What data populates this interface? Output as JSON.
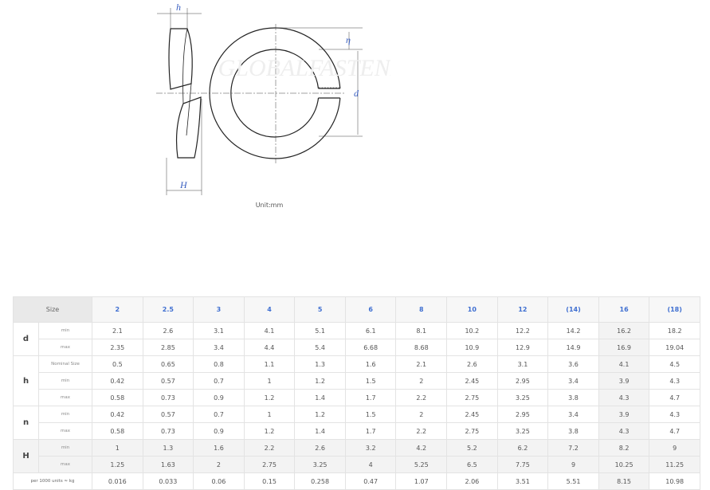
{
  "drawing": {
    "labels": {
      "h": "h",
      "n": "η",
      "d": "d",
      "H": "H"
    },
    "watermark": "GLOBALFASTENER",
    "unit": "Unit:mm"
  },
  "table": {
    "size_label": "Size",
    "sizes": [
      "2",
      "2.5",
      "3",
      "4",
      "5",
      "6",
      "8",
      "10",
      "12",
      "(14)",
      "16",
      "(18)"
    ],
    "groups": [
      {
        "name": "d",
        "rows": [
          {
            "label": "min",
            "values": [
              "2.1",
              "2.6",
              "3.1",
              "4.1",
              "5.1",
              "6.1",
              "8.1",
              "10.2",
              "12.2",
              "14.2",
              "16.2",
              "18.2"
            ]
          },
          {
            "label": "max",
            "values": [
              "2.35",
              "2.85",
              "3.4",
              "4.4",
              "5.4",
              "6.68",
              "8.68",
              "10.9",
              "12.9",
              "14.9",
              "16.9",
              "19.04"
            ]
          }
        ]
      },
      {
        "name": "h",
        "rows": [
          {
            "label": "Nominal Size",
            "values": [
              "0.5",
              "0.65",
              "0.8",
              "1.1",
              "1.3",
              "1.6",
              "2.1",
              "2.6",
              "3.1",
              "3.6",
              "4.1",
              "4.5"
            ]
          },
          {
            "label": "min",
            "values": [
              "0.42",
              "0.57",
              "0.7",
              "1",
              "1.2",
              "1.5",
              "2",
              "2.45",
              "2.95",
              "3.4",
              "3.9",
              "4.3"
            ]
          },
          {
            "label": "max",
            "values": [
              "0.58",
              "0.73",
              "0.9",
              "1.2",
              "1.4",
              "1.7",
              "2.2",
              "2.75",
              "3.25",
              "3.8",
              "4.3",
              "4.7"
            ]
          }
        ]
      },
      {
        "name": "n",
        "rows": [
          {
            "label": "min",
            "values": [
              "0.42",
              "0.57",
              "0.7",
              "1",
              "1.2",
              "1.5",
              "2",
              "2.45",
              "2.95",
              "3.4",
              "3.9",
              "4.3"
            ]
          },
          {
            "label": "max",
            "values": [
              "0.58",
              "0.73",
              "0.9",
              "1.2",
              "1.4",
              "1.7",
              "2.2",
              "2.75",
              "3.25",
              "3.8",
              "4.3",
              "4.7"
            ]
          }
        ]
      },
      {
        "name": "H",
        "shaded": true,
        "rows": [
          {
            "label": "min",
            "values": [
              "1",
              "1.3",
              "1.6",
              "2.2",
              "2.6",
              "3.2",
              "4.2",
              "5.2",
              "6.2",
              "7.2",
              "8.2",
              "9"
            ]
          },
          {
            "label": "max",
            "values": [
              "1.25",
              "1.63",
              "2",
              "2.75",
              "3.25",
              "4",
              "5.25",
              "6.5",
              "7.75",
              "9",
              "10.25",
              "11.25"
            ]
          }
        ]
      }
    ],
    "weight": {
      "label": "per 1000 units ≈ kg",
      "values": [
        "0.016",
        "0.033",
        "0.06",
        "0.15",
        "0.258",
        "0.47",
        "1.07",
        "2.06",
        "3.51",
        "5.51",
        "8.15",
        "10.98"
      ]
    }
  }
}
